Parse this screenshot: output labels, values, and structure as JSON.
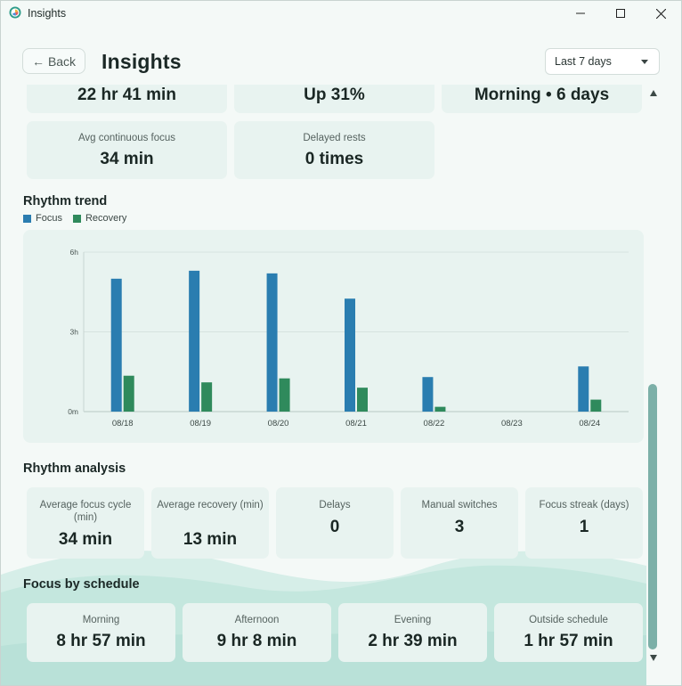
{
  "window": {
    "title": "Insights"
  },
  "header": {
    "back_label": "Back",
    "title": "Insights",
    "range": "Last 7 days"
  },
  "summary_top": [
    {
      "value": "22 hr 41 min"
    },
    {
      "value": "Up 31%"
    },
    {
      "value": "Morning • 6 days"
    }
  ],
  "summary_second": [
    {
      "label": "Avg continuous focus",
      "value": "34 min"
    },
    {
      "label": "Delayed rests",
      "value": "0 times"
    }
  ],
  "trend": {
    "title": "Rhythm trend",
    "legend": {
      "focus": "Focus",
      "recovery": "Recovery"
    }
  },
  "chart_data": {
    "type": "bar",
    "categories": [
      "08/18",
      "08/19",
      "08/20",
      "08/21",
      "08/22",
      "08/23",
      "08/24"
    ],
    "y_ticks": [
      "0m",
      "3h",
      "6h"
    ],
    "ylim": [
      0,
      6
    ],
    "series": [
      {
        "name": "Focus",
        "color": "#2a7db0",
        "values": [
          5.0,
          5.3,
          5.2,
          4.25,
          1.3,
          0,
          1.7
        ]
      },
      {
        "name": "Recovery",
        "color": "#2f8a5c",
        "values": [
          1.35,
          1.1,
          1.25,
          0.9,
          0.18,
          0,
          0.45
        ]
      }
    ],
    "grid": true,
    "legend": "top-left"
  },
  "analysis": {
    "title": "Rhythm analysis",
    "cards": [
      {
        "label": "Average focus cycle (min)",
        "value": "34 min"
      },
      {
        "label": "Average recovery (min)",
        "value": "13 min"
      },
      {
        "label": "Delays",
        "value": "0"
      },
      {
        "label": "Manual switches",
        "value": "3"
      },
      {
        "label": "Focus streak (days)",
        "value": "1"
      }
    ]
  },
  "schedule": {
    "title": "Focus by schedule",
    "cards": [
      {
        "label": "Morning",
        "value": "8 hr 57 min"
      },
      {
        "label": "Afternoon",
        "value": "9 hr 8 min"
      },
      {
        "label": "Evening",
        "value": "2 hr 39 min"
      },
      {
        "label": "Outside schedule",
        "value": "1 hr 57 min"
      }
    ]
  },
  "colors": {
    "focus": "#2a7db0",
    "recovery": "#2f8a5c",
    "card": "#e8f3f0",
    "accent_wave": "#bfe5dc"
  }
}
